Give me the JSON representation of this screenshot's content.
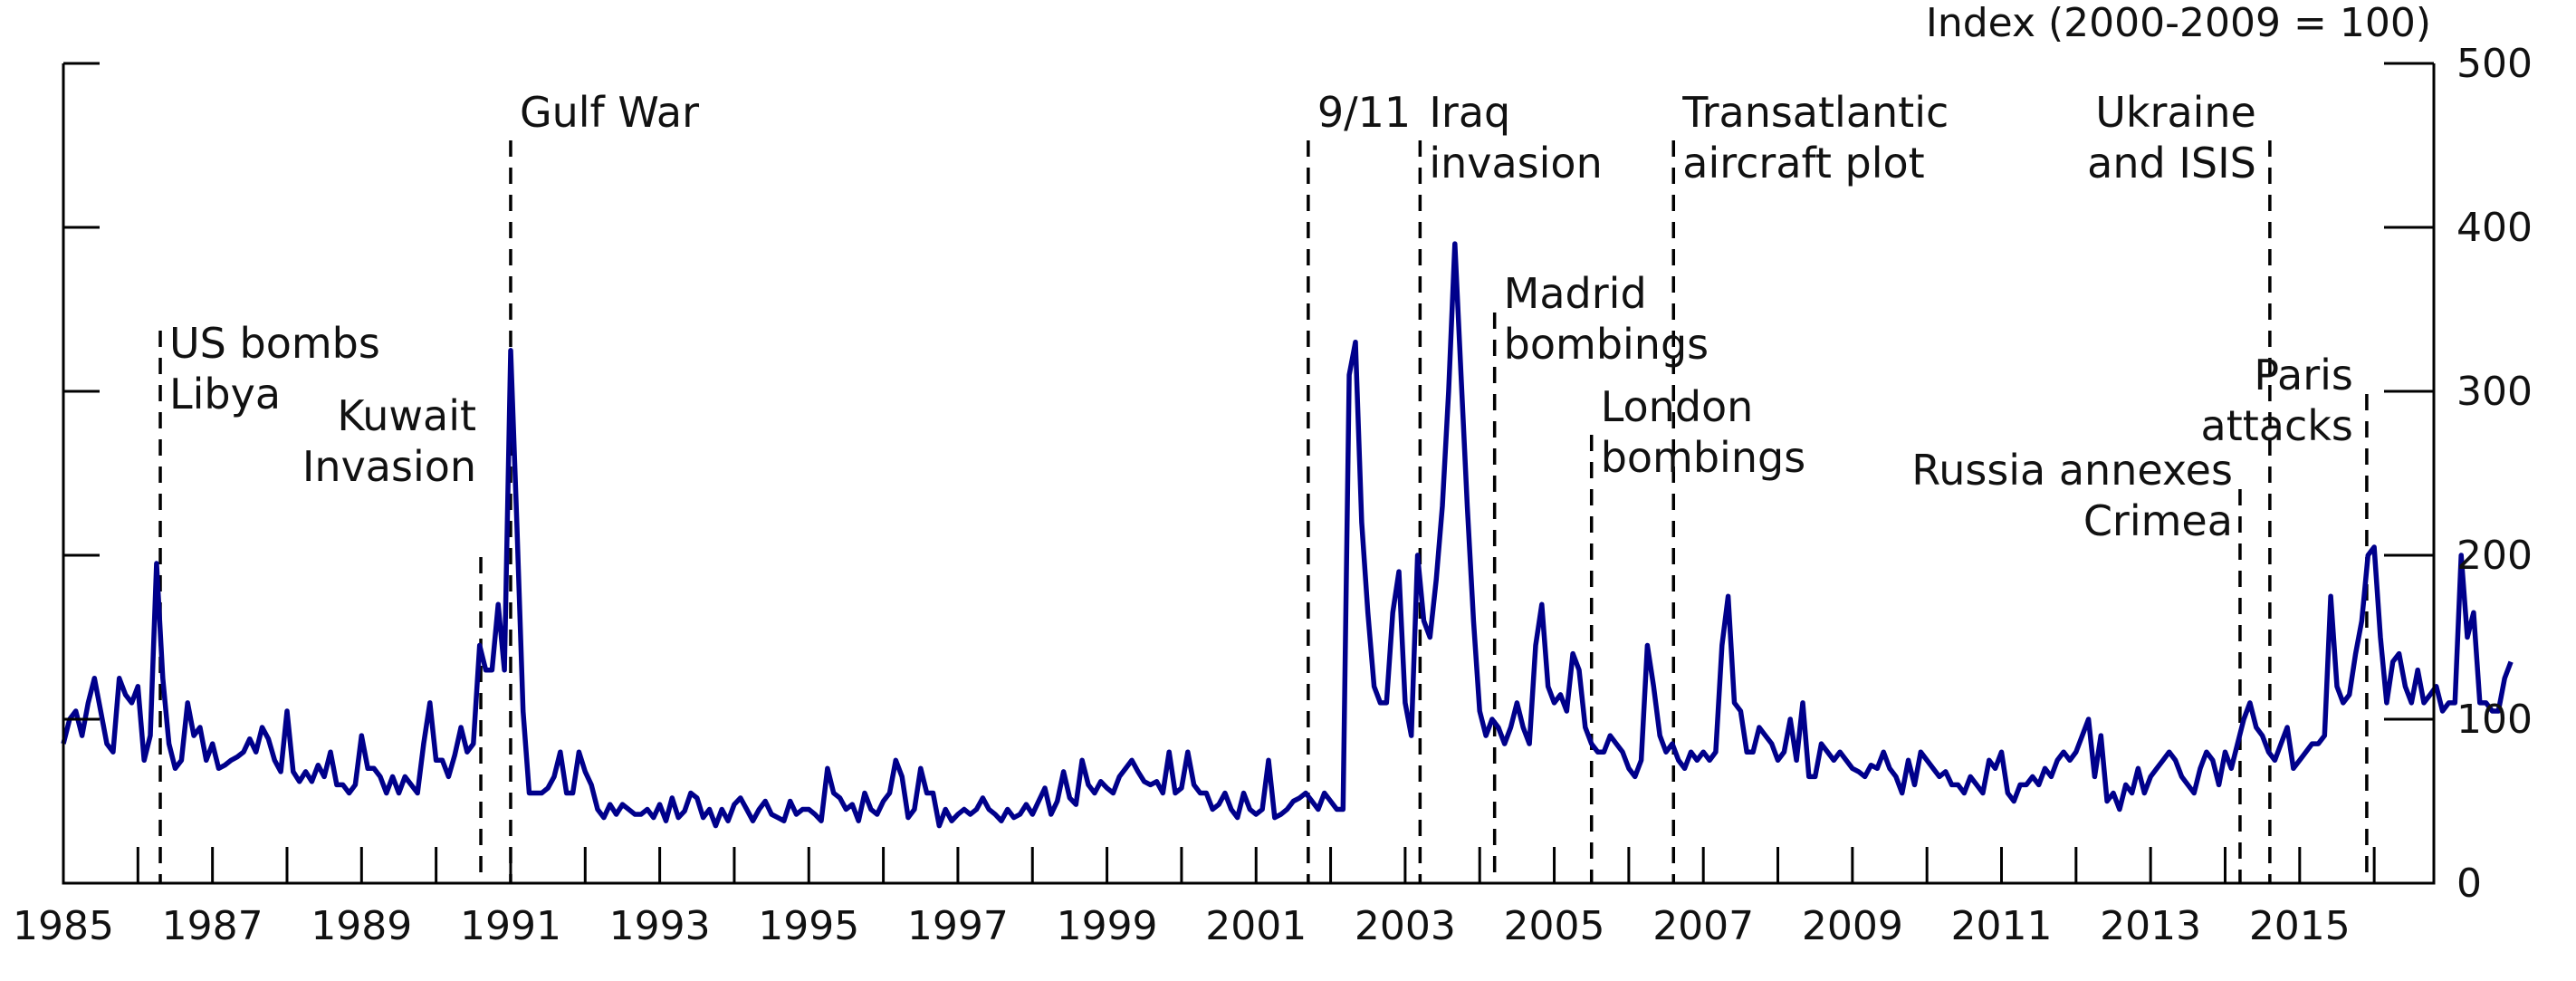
{
  "chart_data": {
    "type": "line",
    "ylabel": "Index (2000-2009 = 100)",
    "ylim": [
      0,
      500
    ],
    "xlim": [
      1985.0,
      2016.8
    ],
    "y_axis_side": "right",
    "y_ticks": [
      0,
      100,
      200,
      300,
      400,
      500
    ],
    "x_tick_labels": [
      "1985",
      "1987",
      "1989",
      "1991",
      "1993",
      "1995",
      "1997",
      "1999",
      "2001",
      "2003",
      "2005",
      "2007",
      "2009",
      "2011",
      "2013",
      "2015"
    ],
    "grid": false,
    "legend": "none",
    "line_color": "#00008B",
    "series": [
      {
        "x_start": 1985.0,
        "x_step": 0.0833333,
        "values": [
          85,
          100,
          105,
          90,
          110,
          125,
          105,
          85,
          80,
          125,
          115,
          110,
          120,
          75,
          90,
          195,
          125,
          85,
          70,
          75,
          110,
          90,
          95,
          75,
          85,
          70,
          72,
          75,
          77,
          80,
          88,
          80,
          95,
          88,
          75,
          68,
          105,
          68,
          62,
          68,
          62,
          72,
          65,
          80,
          60,
          60,
          55,
          60,
          90,
          70,
          70,
          65,
          55,
          65,
          55,
          65,
          60,
          55,
          85,
          110,
          75,
          75,
          65,
          78,
          95,
          80,
          85,
          145,
          130,
          130,
          170,
          130,
          325,
          220,
          105,
          55,
          55,
          55,
          58,
          65,
          80,
          55,
          55,
          80,
          68,
          60,
          45,
          40,
          48,
          42,
          48,
          45,
          42,
          42,
          45,
          40,
          48,
          38,
          52,
          40,
          44,
          55,
          52,
          40,
          45,
          35,
          45,
          38,
          48,
          52,
          45,
          38,
          45,
          50,
          42,
          40,
          38,
          50,
          42,
          45,
          45,
          42,
          38,
          70,
          55,
          52,
          45,
          48,
          38,
          55,
          45,
          42,
          50,
          55,
          75,
          65,
          40,
          45,
          70,
          55,
          55,
          35,
          45,
          38,
          42,
          45,
          42,
          45,
          52,
          45,
          42,
          38,
          45,
          40,
          42,
          48,
          42,
          50,
          58,
          42,
          50,
          68,
          52,
          48,
          75,
          60,
          55,
          62,
          58,
          55,
          65,
          70,
          75,
          68,
          62,
          60,
          62,
          55,
          80,
          55,
          58,
          80,
          60,
          55,
          55,
          45,
          48,
          55,
          45,
          40,
          55,
          45,
          42,
          45,
          75,
          40,
          42,
          45,
          50,
          52,
          55,
          50,
          45,
          55,
          50,
          45,
          45,
          310,
          330,
          220,
          165,
          120,
          110,
          110,
          165,
          190,
          110,
          90,
          200,
          160,
          150,
          185,
          230,
          300,
          390,
          310,
          230,
          160,
          105,
          90,
          100,
          95,
          85,
          95,
          110,
          95,
          85,
          145,
          170,
          120,
          110,
          115,
          105,
          140,
          130,
          95,
          85,
          80,
          80,
          90,
          85,
          80,
          70,
          65,
          75,
          145,
          120,
          90,
          80,
          85,
          75,
          70,
          80,
          75,
          80,
          75,
          80,
          145,
          175,
          110,
          105,
          80,
          80,
          95,
          90,
          85,
          75,
          80,
          100,
          75,
          110,
          65,
          65,
          85,
          80,
          75,
          80,
          75,
          70,
          68,
          65,
          72,
          70,
          80,
          70,
          65,
          55,
          75,
          60,
          80,
          75,
          70,
          65,
          68,
          60,
          60,
          55,
          65,
          60,
          55,
          75,
          70,
          80,
          55,
          50,
          60,
          60,
          65,
          60,
          70,
          65,
          75,
          80,
          75,
          80,
          90,
          100,
          65,
          90,
          50,
          55,
          45,
          60,
          55,
          70,
          55,
          65,
          70,
          75,
          80,
          75,
          65,
          60,
          55,
          70,
          80,
          75,
          60,
          80,
          70,
          85,
          100,
          110,
          95,
          90,
          80,
          75,
          85,
          95,
          70,
          75,
          80,
          85,
          85,
          90,
          175,
          120,
          110,
          115,
          140,
          160,
          200,
          205,
          150,
          110,
          135,
          140,
          120,
          110,
          130,
          110,
          115,
          120,
          105,
          110,
          110,
          200,
          150,
          165,
          110,
          110,
          105,
          105,
          125,
          135
        ]
      }
    ],
    "annotations": [
      {
        "lines": [
          "US bombs",
          "Libya"
        ],
        "x": 1986.3
      },
      {
        "lines": [
          "Kuwait",
          "Invasion"
        ],
        "x": 1990.6
      },
      {
        "lines": [
          "Gulf War"
        ],
        "x": 1991.0
      },
      {
        "lines": [
          "9/11"
        ],
        "x": 2001.7
      },
      {
        "lines": [
          "Iraq",
          "invasion"
        ],
        "x": 2003.2
      },
      {
        "lines": [
          "Madrid",
          "bombings"
        ],
        "x": 2004.2
      },
      {
        "lines": [
          "London",
          "bombings"
        ],
        "x": 2005.5
      },
      {
        "lines": [
          "Transatlantic",
          "aircraft plot"
        ],
        "x": 2006.6
      },
      {
        "lines": [
          "Russia annexes",
          "Crimea"
        ],
        "x": 2014.2
      },
      {
        "lines": [
          "Ukraine",
          "and ISIS"
        ],
        "x": 2014.6
      },
      {
        "lines": [
          "Paris",
          "attacks"
        ],
        "x": 2015.9
      }
    ]
  }
}
